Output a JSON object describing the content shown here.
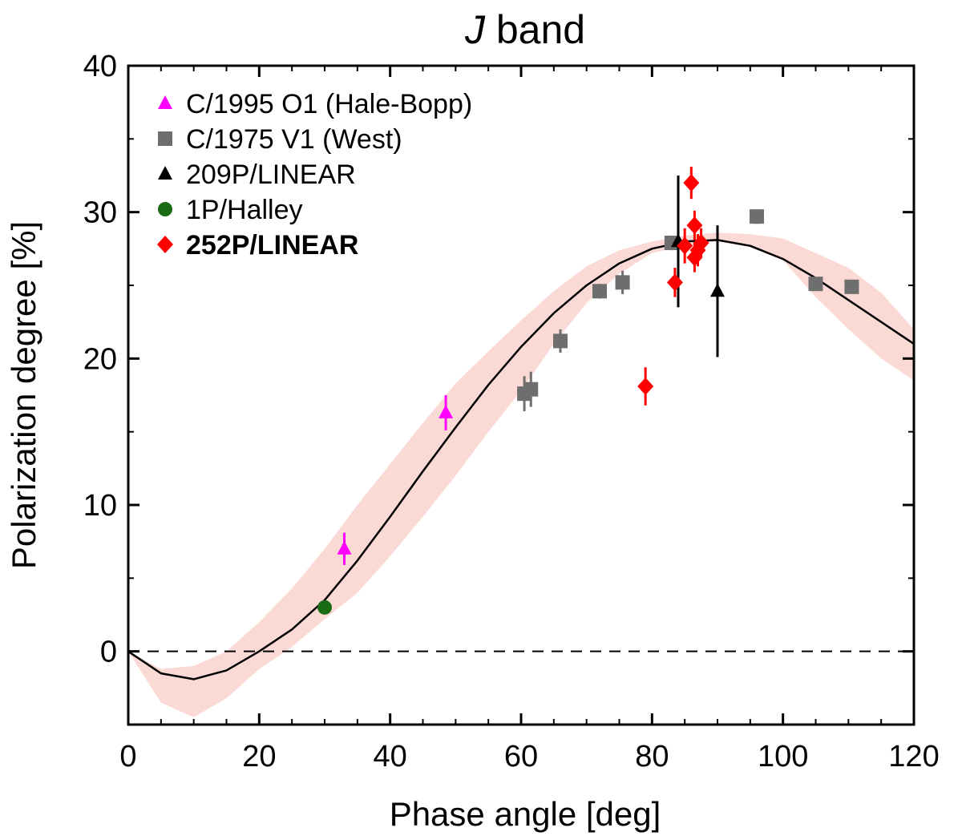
{
  "chart_data": {
    "type": "scatter",
    "title_italic": "J",
    "title_rest": " band",
    "xlabel": "Phase angle [deg]",
    "ylabel": "Polarization degree [%]",
    "xlim": [
      0,
      120
    ],
    "ylim": [
      -5,
      40
    ],
    "xticks": [
      0,
      20,
      40,
      60,
      80,
      100,
      120
    ],
    "yticks": [
      0,
      10,
      20,
      30,
      40
    ],
    "xtick_labels": [
      "0",
      "20",
      "40",
      "60",
      "80",
      "100",
      "120"
    ],
    "ytick_labels": [
      "0",
      "10",
      "20",
      "30",
      "40"
    ],
    "reference_line_y": 0,
    "legend_position": "top-left",
    "fit_curve": {
      "name": "fit",
      "x": [
        0,
        5,
        10,
        15,
        20,
        25,
        30,
        35,
        40,
        45,
        50,
        55,
        60,
        65,
        70,
        75,
        80,
        85,
        90,
        95,
        100,
        105,
        110,
        115,
        120
      ],
      "y": [
        0,
        -1.5,
        -1.9,
        -1.3,
        0.0,
        1.5,
        3.5,
        6.2,
        9.2,
        12.3,
        15.3,
        18.2,
        20.8,
        23.1,
        25.0,
        26.5,
        27.5,
        28.0,
        28.1,
        27.7,
        26.8,
        25.5,
        24.0,
        22.5,
        21.0
      ],
      "band_upper": [
        0,
        -1.2,
        -1.0,
        0.0,
        2.0,
        4.3,
        7.0,
        10.0,
        12.8,
        15.6,
        18.3,
        20.5,
        22.6,
        24.6,
        26.3,
        27.4,
        28.0,
        28.4,
        28.6,
        28.5,
        28.2,
        27.2,
        26.2,
        24.5,
        22.0
      ],
      "band_lower": [
        0,
        -3.5,
        -4.5,
        -3.2,
        -1.2,
        0.3,
        2.2,
        4.0,
        6.5,
        9.2,
        12.0,
        15.0,
        17.8,
        21.0,
        23.8,
        25.8,
        27.2,
        27.7,
        28.0,
        27.6,
        26.7,
        24.2,
        22.0,
        20.0,
        18.5
      ]
    },
    "series": [
      {
        "name": "C/1995 O1 (Hale-Bopp)",
        "marker": "triangle",
        "color": "#ff00ff",
        "x": [
          33,
          48.5
        ],
        "y": [
          7.0,
          16.3
        ],
        "err": [
          1.1,
          1.2
        ]
      },
      {
        "name": "C/1975 V1 (West)",
        "marker": "square",
        "color": "#6e6e6e",
        "x": [
          60.5,
          61.5,
          66,
          72,
          75.5,
          83,
          96,
          105,
          110.5
        ],
        "y": [
          17.6,
          17.9,
          21.2,
          24.6,
          25.2,
          27.9,
          29.7,
          25.1,
          24.9
        ],
        "err": [
          1.2,
          1.2,
          0.8,
          0.5,
          0.8,
          0.5,
          0.5,
          0.4,
          0.4
        ]
      },
      {
        "name": "209P/LINEAR",
        "marker": "triangle",
        "color": "#000000",
        "x": [
          84,
          90
        ],
        "y": [
          28.0,
          24.6
        ],
        "err": [
          4.5,
          4.5
        ]
      },
      {
        "name": "1P/Halley",
        "marker": "circle",
        "color": "#1a6b14",
        "x": [
          30
        ],
        "y": [
          3.0
        ],
        "err": [
          0
        ]
      },
      {
        "name": "252P/LINEAR",
        "marker": "diamond",
        "color": "#ff0000",
        "bold": true,
        "x": [
          79,
          83.5,
          85,
          86,
          86.5,
          87,
          87.5,
          86.5
        ],
        "y": [
          18.1,
          25.2,
          27.7,
          32.0,
          29.1,
          27.4,
          27.9,
          26.9
        ],
        "err": [
          1.3,
          1.0,
          1.2,
          1.1,
          1.0,
          1.1,
          1.0,
          1.0
        ]
      }
    ]
  }
}
